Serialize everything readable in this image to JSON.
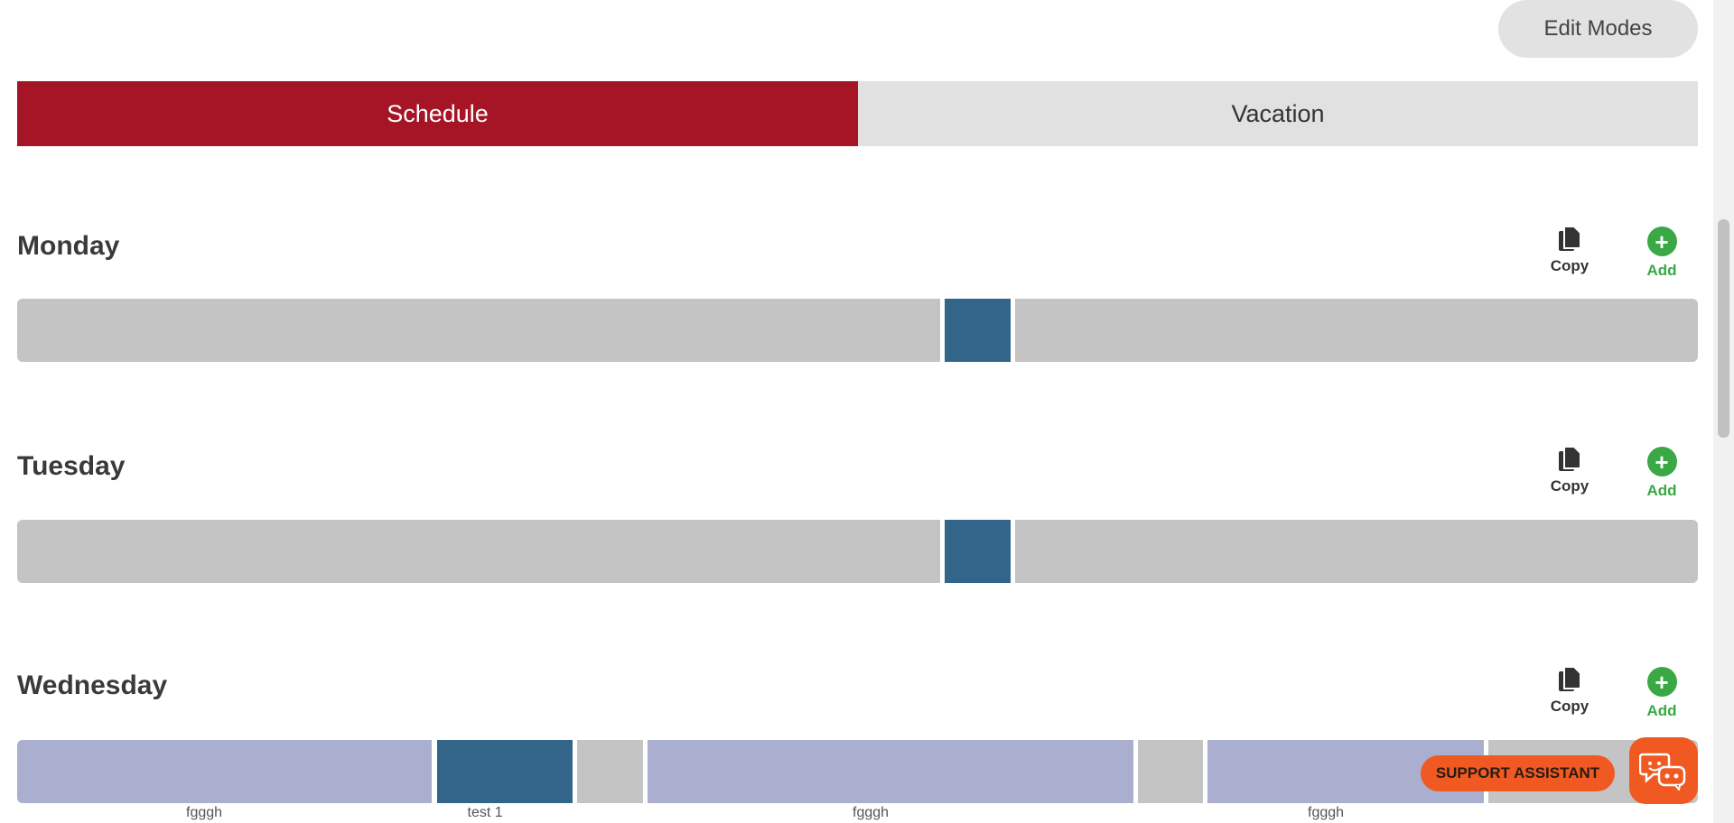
{
  "header": {
    "edit_modes_label": "Edit Modes"
  },
  "tabs": [
    {
      "label": "Schedule",
      "active": true
    },
    {
      "label": "Vacation",
      "active": false
    }
  ],
  "actions": {
    "copy_label": "Copy",
    "add_label": "Add"
  },
  "colors": {
    "accent": "#a51526",
    "add_green": "#3aa844",
    "segment_blue": "#33658a",
    "segment_gray": "#c4c4c4",
    "segment_lavender": "#aaaecf",
    "support_orange": "#f05a22"
  },
  "days": [
    {
      "name": "Monday",
      "segments": [
        {
          "color": "gray"
        },
        {
          "color": "blue"
        },
        {
          "color": "gray"
        }
      ]
    },
    {
      "name": "Tuesday",
      "segments": [
        {
          "color": "gray"
        },
        {
          "color": "blue"
        },
        {
          "color": "gray"
        }
      ]
    },
    {
      "name": "Wednesday",
      "segments": [
        {
          "color": "lavender",
          "label": "fgggh"
        },
        {
          "color": "blue",
          "label": "test 1"
        },
        {
          "color": "gray"
        },
        {
          "color": "lavender",
          "label": "fgggh"
        },
        {
          "color": "gray"
        },
        {
          "color": "lavender",
          "label": "fgggh"
        },
        {
          "color": "gray"
        }
      ]
    }
  ],
  "support": {
    "assistant_label": "SUPPORT ASSISTANT"
  },
  "icons": {
    "copy": "copy-icon",
    "add": "plus-circle-icon",
    "chat": "chat-bot-icon"
  }
}
